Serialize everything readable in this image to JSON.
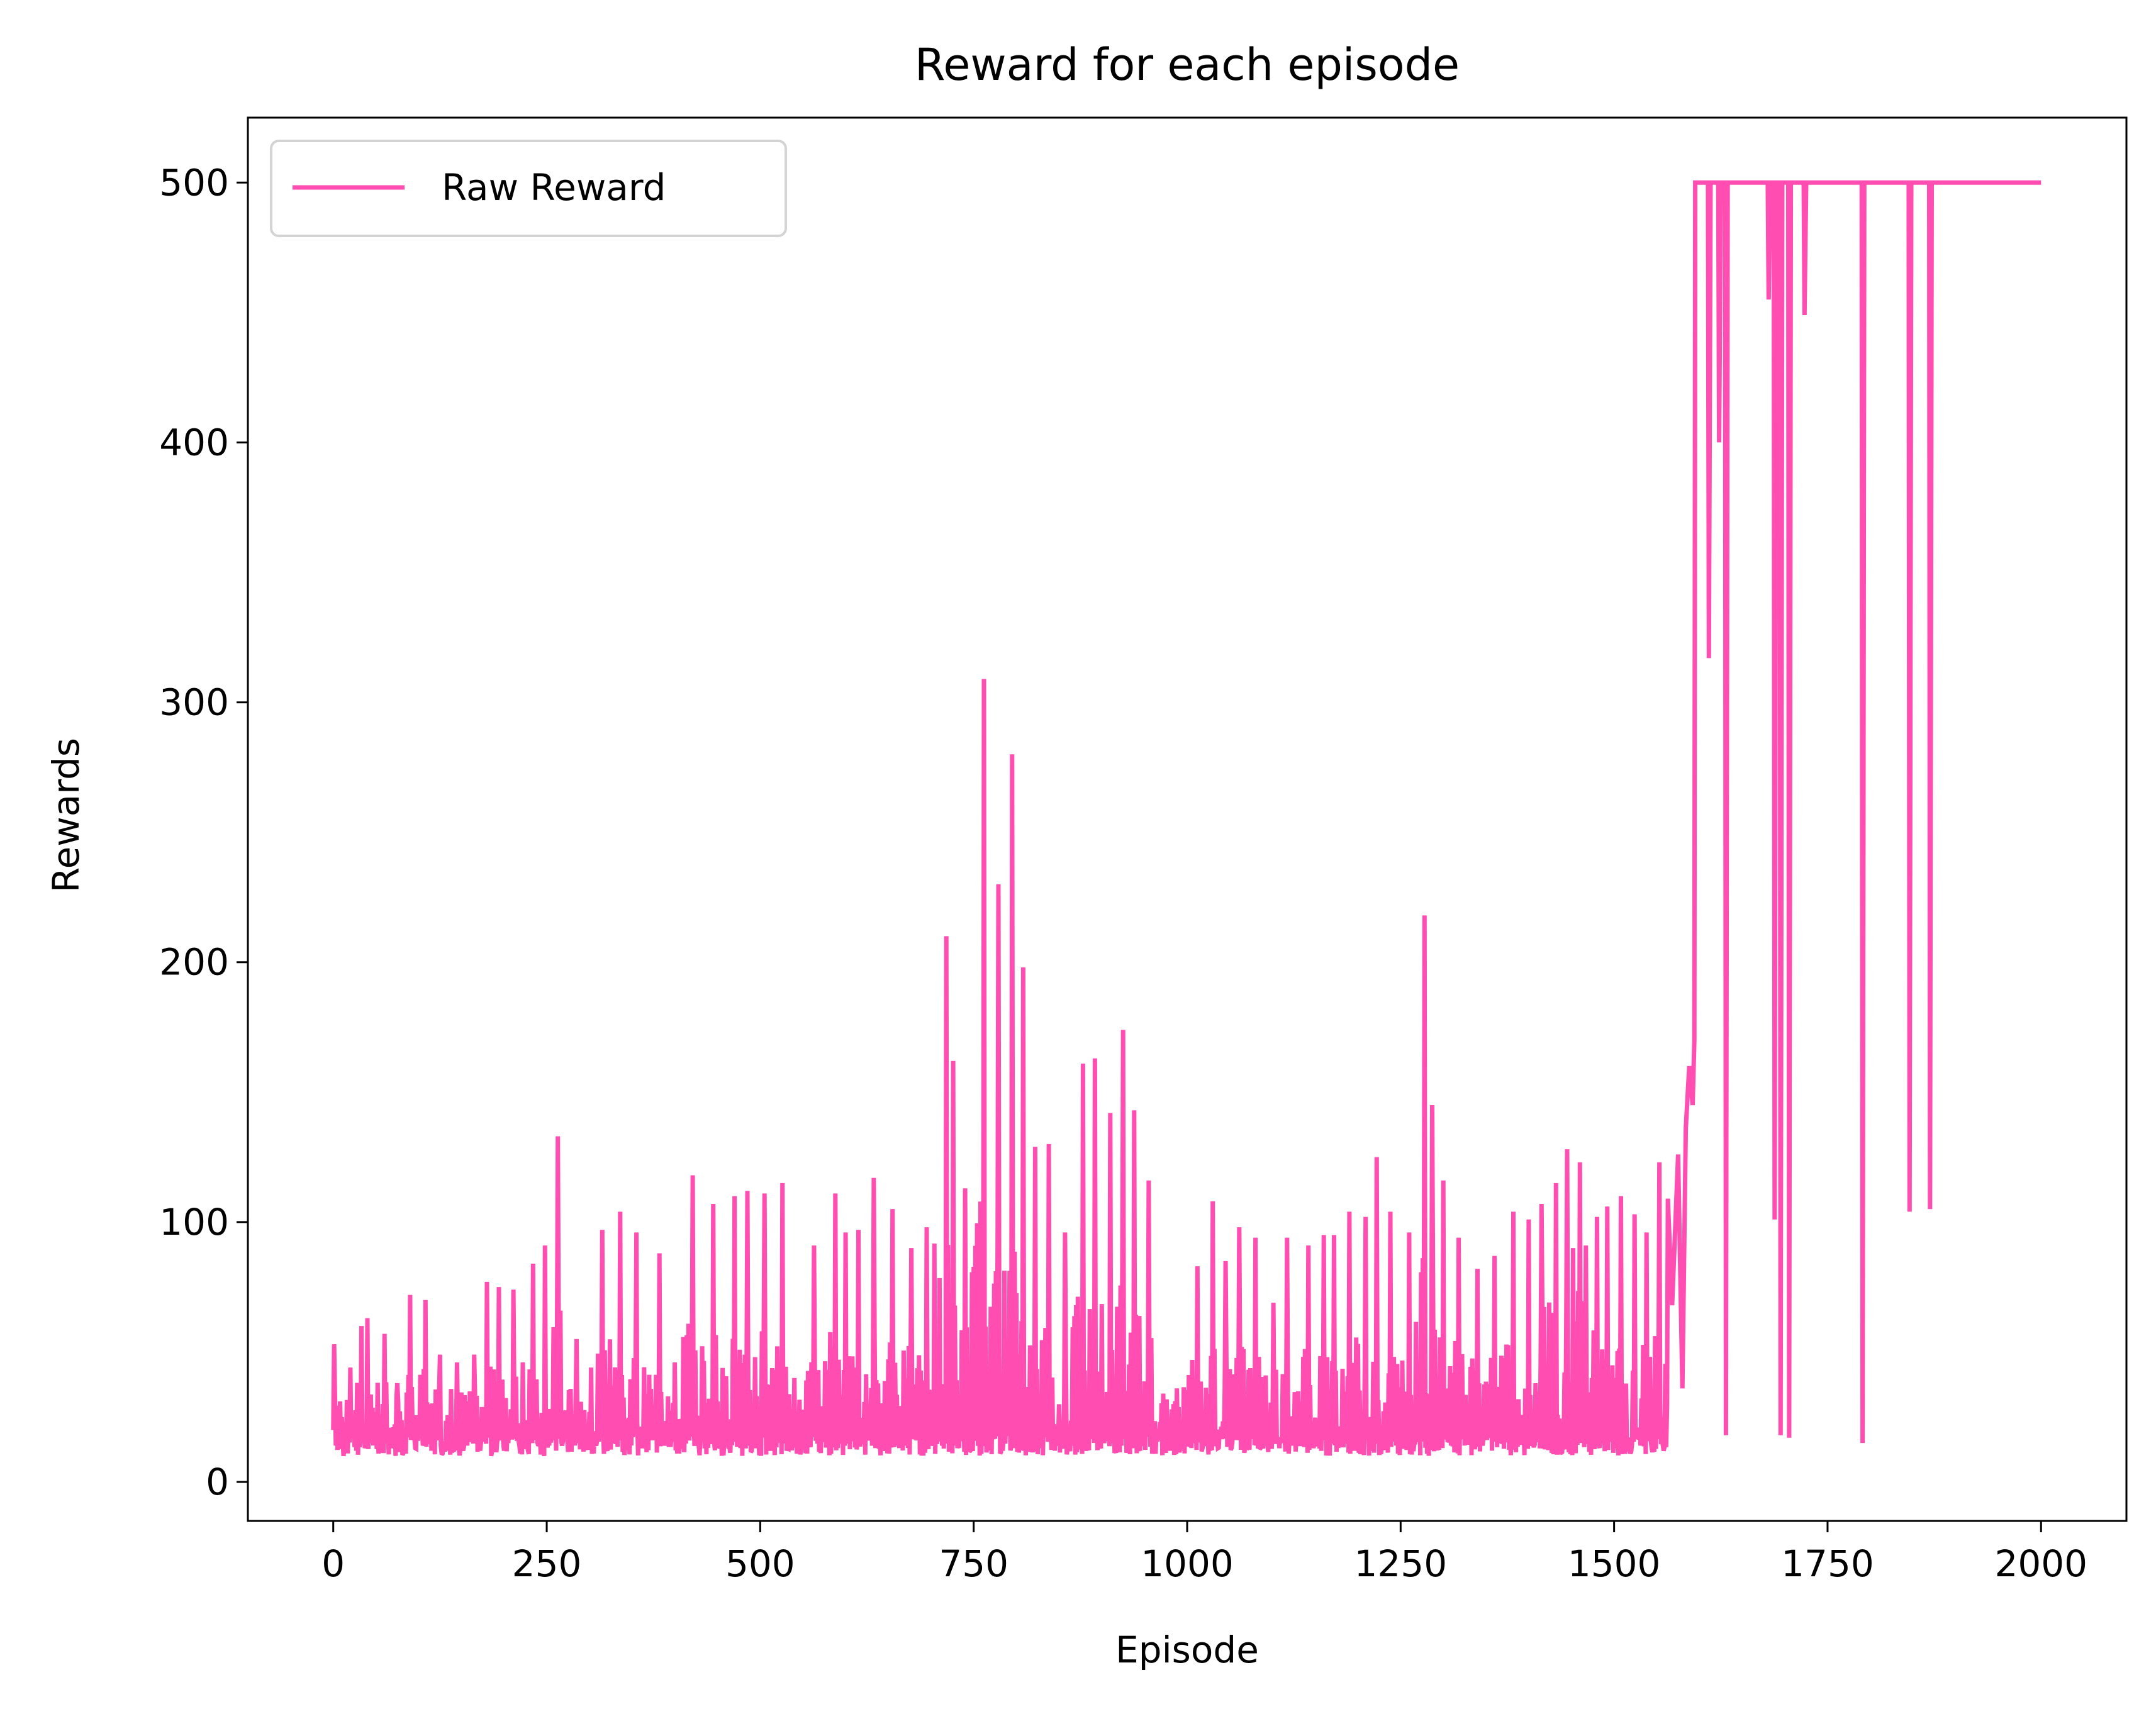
{
  "chart_data": {
    "type": "line",
    "title": "Reward for each episode",
    "xlabel": "Episode",
    "ylabel": "Rewards",
    "xlim": [
      -100,
      2100
    ],
    "ylim": [
      -15,
      525
    ],
    "xticks": [
      0,
      250,
      500,
      750,
      1000,
      1250,
      1500,
      1750,
      2000
    ],
    "yticks": [
      0,
      100,
      200,
      300,
      400,
      500
    ],
    "grid": false,
    "legend": {
      "position": "top-left"
    },
    "colors": {
      "line": "#ff4db1"
    },
    "series": [
      {
        "name": "Raw Reward",
        "anchors": [
          [
            0,
            20
          ],
          [
            1,
            53
          ],
          [
            3,
            14
          ],
          [
            8,
            31
          ],
          [
            12,
            10
          ],
          [
            20,
            44
          ],
          [
            27,
            12
          ],
          [
            33,
            60
          ],
          [
            37,
            13
          ],
          [
            40,
            63
          ],
          [
            45,
            15
          ],
          [
            60,
            57
          ],
          [
            68,
            13
          ],
          [
            75,
            38
          ],
          [
            82,
            11
          ],
          [
            90,
            72
          ],
          [
            96,
            13
          ],
          [
            108,
            70
          ],
          [
            115,
            12
          ],
          [
            125,
            49
          ],
          [
            133,
            12
          ],
          [
            145,
            46
          ],
          [
            152,
            12
          ],
          [
            165,
            49
          ],
          [
            172,
            12
          ],
          [
            180,
            77
          ],
          [
            186,
            12
          ],
          [
            194,
            75
          ],
          [
            200,
            12
          ],
          [
            211,
            74
          ],
          [
            218,
            14
          ],
          [
            234,
            84
          ],
          [
            240,
            14
          ],
          [
            248,
            91
          ],
          [
            253,
            14
          ],
          [
            263,
            133
          ],
          [
            268,
            14
          ],
          [
            285,
            55
          ],
          [
            291,
            14
          ],
          [
            302,
            44
          ],
          [
            308,
            14
          ],
          [
            315,
            97
          ],
          [
            320,
            13
          ],
          [
            336,
            104
          ],
          [
            342,
            14
          ],
          [
            355,
            96
          ],
          [
            362,
            13
          ],
          [
            382,
            88
          ],
          [
            388,
            14
          ],
          [
            400,
            46
          ],
          [
            406,
            14
          ],
          [
            421,
            118
          ],
          [
            428,
            14
          ],
          [
            445,
            107
          ],
          [
            452,
            13
          ],
          [
            470,
            110
          ],
          [
            477,
            13
          ],
          [
            485,
            112
          ],
          [
            492,
            13
          ],
          [
            505,
            111
          ],
          [
            512,
            12
          ],
          [
            526,
            115
          ],
          [
            532,
            13
          ],
          [
            540,
            40
          ],
          [
            548,
            14
          ],
          [
            563,
            91
          ],
          [
            570,
            14
          ],
          [
            588,
            111
          ],
          [
            594,
            15
          ],
          [
            600,
            96
          ],
          [
            607,
            16
          ],
          [
            615,
            97
          ],
          [
            621,
            15
          ],
          [
            633,
            117
          ],
          [
            640,
            15
          ],
          [
            655,
            105
          ],
          [
            662,
            16
          ],
          [
            677,
            90
          ],
          [
            683,
            16
          ],
          [
            695,
            98
          ],
          [
            702,
            15
          ],
          [
            718,
            210
          ],
          [
            722,
            14
          ],
          [
            726,
            162
          ],
          [
            731,
            13
          ],
          [
            740,
            113
          ],
          [
            746,
            12
          ],
          [
            762,
            309
          ],
          [
            766,
            14
          ],
          [
            779,
            230
          ],
          [
            784,
            12
          ],
          [
            795,
            280
          ],
          [
            799,
            13
          ],
          [
            808,
            198
          ],
          [
            813,
            12
          ],
          [
            822,
            129
          ],
          [
            827,
            13
          ],
          [
            838,
            130
          ],
          [
            845,
            12
          ],
          [
            857,
            96
          ],
          [
            862,
            14
          ],
          [
            878,
            161
          ],
          [
            884,
            13
          ],
          [
            892,
            163
          ],
          [
            898,
            14
          ],
          [
            910,
            142
          ],
          [
            916,
            12
          ],
          [
            925,
            174
          ],
          [
            930,
            13
          ],
          [
            938,
            143
          ],
          [
            945,
            12
          ],
          [
            955,
            116
          ],
          [
            960,
            13
          ],
          [
            972,
            34
          ],
          [
            980,
            12
          ],
          [
            988,
            36
          ],
          [
            995,
            12
          ],
          [
            1012,
            83
          ],
          [
            1018,
            13
          ],
          [
            1030,
            108
          ],
          [
            1036,
            13
          ],
          [
            1045,
            85
          ],
          [
            1052,
            13
          ],
          [
            1061,
            98
          ],
          [
            1068,
            14
          ],
          [
            1080,
            94
          ],
          [
            1086,
            13
          ],
          [
            1101,
            69
          ],
          [
            1108,
            13
          ],
          [
            1117,
            94
          ],
          [
            1123,
            14
          ],
          [
            1142,
            91
          ],
          [
            1148,
            13
          ],
          [
            1160,
            95
          ],
          [
            1166,
            14
          ],
          [
            1172,
            95
          ],
          [
            1178,
            14
          ],
          [
            1190,
            104
          ],
          [
            1196,
            12
          ],
          [
            1209,
            102
          ],
          [
            1216,
            12
          ],
          [
            1222,
            125
          ],
          [
            1228,
            14
          ],
          [
            1238,
            104
          ],
          [
            1245,
            14
          ],
          [
            1260,
            96
          ],
          [
            1266,
            15
          ],
          [
            1278,
            218
          ],
          [
            1282,
            16
          ],
          [
            1287,
            145
          ],
          [
            1292,
            15
          ],
          [
            1300,
            116
          ],
          [
            1306,
            16
          ],
          [
            1318,
            94
          ],
          [
            1325,
            14
          ],
          [
            1340,
            82
          ],
          [
            1346,
            14
          ],
          [
            1360,
            87
          ],
          [
            1366,
            15
          ],
          [
            1382,
            104
          ],
          [
            1390,
            25
          ],
          [
            1400,
            101
          ],
          [
            1408,
            38
          ],
          [
            1415,
            107
          ],
          [
            1422,
            41
          ],
          [
            1432,
            115
          ],
          [
            1438,
            12
          ],
          [
            1445,
            128
          ],
          [
            1452,
            90
          ],
          [
            1460,
            123
          ],
          [
            1467,
            91
          ],
          [
            1474,
            40
          ],
          [
            1480,
            102
          ],
          [
            1486,
            51
          ],
          [
            1492,
            106
          ],
          [
            1500,
            15
          ],
          [
            1508,
            110
          ],
          [
            1516,
            14
          ],
          [
            1524,
            103
          ],
          [
            1531,
            14
          ],
          [
            1538,
            96
          ],
          [
            1546,
            13
          ],
          [
            1553,
            123
          ],
          [
            1558,
            12
          ],
          [
            1563,
            109
          ],
          [
            1568,
            68
          ],
          [
            1575,
            126
          ],
          [
            1580,
            36
          ],
          [
            1584,
            136
          ],
          [
            1588,
            160
          ],
          [
            1592,
            145
          ],
          [
            1594,
            170
          ],
          [
            1595,
            500
          ],
          [
            1610,
            500
          ],
          [
            1611,
            317
          ],
          [
            1613,
            500
          ],
          [
            1622,
            500
          ],
          [
            1623,
            400
          ],
          [
            1625,
            500
          ],
          [
            1630,
            500
          ],
          [
            1631,
            18
          ],
          [
            1633,
            500
          ],
          [
            1680,
            500
          ],
          [
            1681,
            455
          ],
          [
            1683,
            500
          ],
          [
            1687,
            500
          ],
          [
            1688,
            101
          ],
          [
            1690,
            500
          ],
          [
            1694,
            500
          ],
          [
            1695,
            18
          ],
          [
            1697,
            500
          ],
          [
            1704,
            500
          ],
          [
            1705,
            17
          ],
          [
            1707,
            500
          ],
          [
            1722,
            500
          ],
          [
            1723,
            449
          ],
          [
            1725,
            500
          ],
          [
            1790,
            500
          ],
          [
            1791,
            15
          ],
          [
            1793,
            500
          ],
          [
            1845,
            500
          ],
          [
            1846,
            104
          ],
          [
            1848,
            500
          ],
          [
            1869,
            500
          ],
          [
            1870,
            105
          ],
          [
            1872,
            500
          ],
          [
            2000,
            500
          ]
        ],
        "noise": {
          "ranges": [
            [
              0,
              1560
            ]
          ]
        }
      }
    ]
  }
}
